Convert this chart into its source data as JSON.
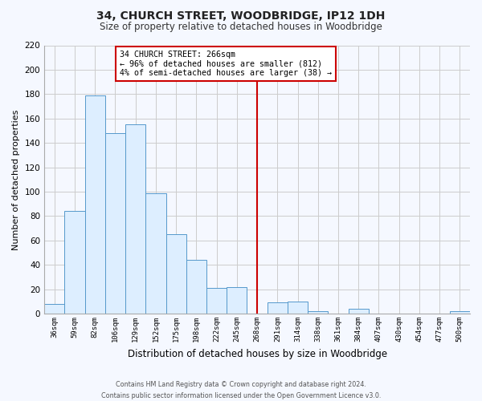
{
  "title": "34, CHURCH STREET, WOODBRIDGE, IP12 1DH",
  "subtitle": "Size of property relative to detached houses in Woodbridge",
  "xlabel": "Distribution of detached houses by size in Woodbridge",
  "ylabel": "Number of detached properties",
  "bar_labels": [
    "36sqm",
    "59sqm",
    "82sqm",
    "106sqm",
    "129sqm",
    "152sqm",
    "175sqm",
    "198sqm",
    "222sqm",
    "245sqm",
    "268sqm",
    "291sqm",
    "314sqm",
    "338sqm",
    "361sqm",
    "384sqm",
    "407sqm",
    "430sqm",
    "454sqm",
    "477sqm",
    "500sqm"
  ],
  "bar_values": [
    8,
    84,
    179,
    148,
    155,
    99,
    65,
    44,
    21,
    22,
    0,
    9,
    10,
    2,
    0,
    4,
    0,
    0,
    0,
    0,
    2
  ],
  "bar_color": "#ddeeff",
  "bar_edge_color": "#5599cc",
  "grid_color": "#cccccc",
  "vline_x_index": 10,
  "vline_color": "#cc0000",
  "ylim": [
    0,
    220
  ],
  "yticks": [
    0,
    20,
    40,
    60,
    80,
    100,
    120,
    140,
    160,
    180,
    200,
    220
  ],
  "annotation_title": "34 CHURCH STREET: 266sqm",
  "annotation_line1": "← 96% of detached houses are smaller (812)",
  "annotation_line2": "4% of semi-detached houses are larger (38) →",
  "annotation_box_color": "#ffffff",
  "annotation_edge_color": "#cc0000",
  "footer_line1": "Contains HM Land Registry data © Crown copyright and database right 2024.",
  "footer_line2": "Contains public sector information licensed under the Open Government Licence v3.0.",
  "bg_color": "#f5f8ff",
  "title_fontsize": 10,
  "subtitle_fontsize": 8.5,
  "ylabel_fontsize": 8,
  "xlabel_fontsize": 8.5
}
